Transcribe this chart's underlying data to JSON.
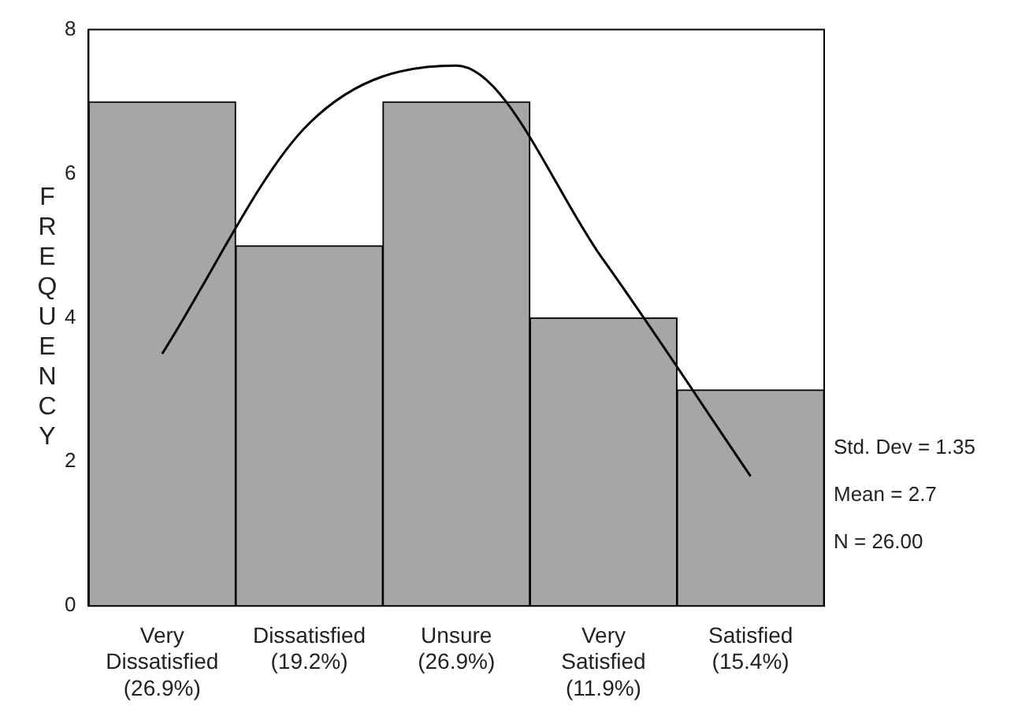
{
  "chart_data": {
    "type": "bar",
    "ylabel": "FREQUENCY",
    "categories": [
      "Very\nDissatisfied\n(26.9%)",
      "Dissatisfied\n(19.2%)",
      "Unsure\n(26.9%)",
      "Very\nSatisfied\n(11.9%)",
      "Satisfied\n(15.4%)"
    ],
    "values": [
      7,
      5,
      7,
      4,
      3
    ],
    "color": "#a6a6a6",
    "series": [
      {
        "type": "line",
        "color": "#000000",
        "values": [
          3.5,
          6.7,
          7.5,
          4.8,
          1.8
        ]
      }
    ],
    "ylim": [
      0,
      8
    ],
    "yticks": [
      0,
      2,
      4,
      6,
      8
    ],
    "grid": false,
    "legend": false,
    "marker": "none",
    "annotations": [
      "Std. Dev = 1.35",
      "Mean = 2.7",
      "N = 26.00"
    ]
  }
}
